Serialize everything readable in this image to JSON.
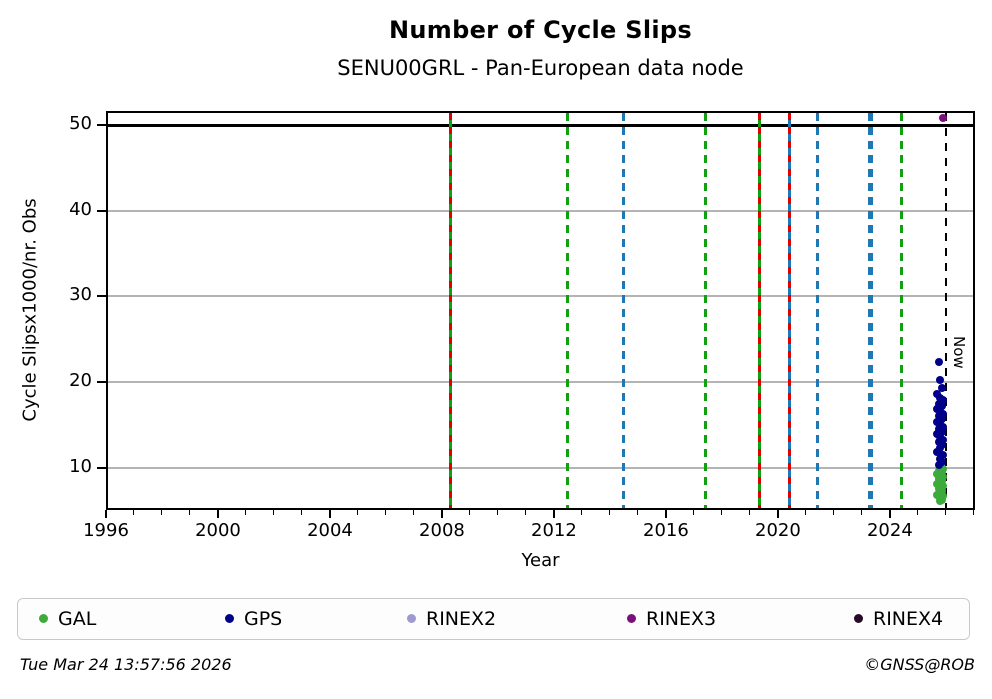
{
  "title": "Number of Cycle Slips",
  "subtitle": "SENU00GRL - Pan-European data node",
  "footer": {
    "timestamp": "Tue Mar 24 13:57:56 2026",
    "credit": "©GNSS@ROB"
  },
  "chart_data": {
    "type": "scatter",
    "title": "Number of Cycle Slips",
    "subtitle": "SENU00GRL - Pan-European data node",
    "xlabel": "Year",
    "ylabel": "Cycle Slipsx1000/nr. Obs",
    "xlim": [
      1996,
      2027.04
    ],
    "ylim": [
      5.1,
      51.6
    ],
    "x_major_ticks": [
      1996,
      2000,
      2004,
      2008,
      2012,
      2016,
      2020,
      2024
    ],
    "x_minor_tick_step": 1,
    "y_ticks": [
      10,
      20,
      30,
      40,
      50
    ],
    "grid": "horizontal-only",
    "gridline_color": "#b4b4b4",
    "threshold_line": {
      "y": 50,
      "color": "#000000",
      "style": "solid"
    },
    "now_line": {
      "x": 2026.0,
      "label": "Now",
      "color": "#000000",
      "style": "dashed"
    },
    "event_lines": [
      {
        "x": 2008.3,
        "color": "#12a012",
        "style": "solid",
        "overlay": "#e00000",
        "width": 3
      },
      {
        "x": 2012.5,
        "color": "#12a012",
        "style": "dashed",
        "overlay": null,
        "width": 3
      },
      {
        "x": 2014.5,
        "color": "#1f77b4",
        "style": "dashed",
        "overlay": null,
        "width": 3
      },
      {
        "x": 2017.4,
        "color": "#12a012",
        "style": "dashed",
        "overlay": null,
        "width": 3
      },
      {
        "x": 2019.35,
        "color": "#12a012",
        "style": "solid",
        "overlay": "#e00000",
        "width": 3
      },
      {
        "x": 2020.4,
        "color": "#1f77b4",
        "style": "solid",
        "overlay": "#e00000",
        "width": 3
      },
      {
        "x": 2021.4,
        "color": "#1f77b4",
        "style": "dashed",
        "overlay": null,
        "width": 3
      },
      {
        "x": 2023.3,
        "color": "#1f77b4",
        "style": "dashed",
        "overlay": null,
        "width": 5
      },
      {
        "x": 2024.4,
        "color": "#12a012",
        "style": "dashed",
        "overlay": null,
        "width": 3
      }
    ],
    "legend": {
      "position": "bottom",
      "entries": [
        "GAL",
        "GPS",
        "RINEX2",
        "RINEX3",
        "RINEX4"
      ]
    },
    "series": [
      {
        "name": "GAL",
        "color": "#3cab3c",
        "points": [
          [
            2025.8,
            10.1
          ],
          [
            2025.9,
            9.9
          ],
          [
            2025.75,
            9.7
          ],
          [
            2025.85,
            9.5
          ],
          [
            2025.7,
            9.3
          ],
          [
            2025.8,
            9.1
          ],
          [
            2025.9,
            8.9
          ],
          [
            2025.75,
            8.7
          ],
          [
            2025.85,
            8.5
          ],
          [
            2025.8,
            8.3
          ],
          [
            2025.7,
            8.1
          ],
          [
            2025.9,
            7.9
          ],
          [
            2025.8,
            7.7
          ],
          [
            2025.75,
            7.5
          ],
          [
            2025.85,
            7.3
          ],
          [
            2025.8,
            7.1
          ],
          [
            2025.7,
            6.9
          ],
          [
            2025.9,
            6.7
          ],
          [
            2025.8,
            6.5
          ],
          [
            2025.85,
            6.3
          ],
          [
            2025.8,
            6.2
          ]
        ]
      },
      {
        "name": "GPS",
        "color": "#00008b",
        "points": [
          [
            2025.75,
            22.4
          ],
          [
            2025.8,
            20.2
          ],
          [
            2025.85,
            19.3
          ],
          [
            2025.7,
            18.6
          ],
          [
            2025.8,
            18.2
          ],
          [
            2025.9,
            17.9
          ],
          [
            2025.75,
            17.5
          ],
          [
            2025.85,
            17.2
          ],
          [
            2025.7,
            16.9
          ],
          [
            2025.8,
            16.6
          ],
          [
            2025.9,
            16.3
          ],
          [
            2025.75,
            16.0
          ],
          [
            2025.85,
            15.7
          ],
          [
            2025.7,
            15.4
          ],
          [
            2025.8,
            15.1
          ],
          [
            2025.9,
            14.8
          ],
          [
            2025.75,
            14.5
          ],
          [
            2025.85,
            14.2
          ],
          [
            2025.7,
            13.9
          ],
          [
            2025.8,
            13.6
          ],
          [
            2025.9,
            13.3
          ],
          [
            2025.75,
            13.0
          ],
          [
            2025.85,
            12.7
          ],
          [
            2025.8,
            12.3
          ],
          [
            2025.7,
            11.9
          ],
          [
            2025.9,
            11.5
          ],
          [
            2025.8,
            11.1
          ],
          [
            2025.85,
            10.7
          ],
          [
            2025.75,
            10.4
          ]
        ]
      },
      {
        "name": "RINEX2",
        "color": "#9e9ad0",
        "points": []
      },
      {
        "name": "RINEX3",
        "color": "#7b107b",
        "points": [
          [
            2025.9,
            50.8
          ]
        ]
      },
      {
        "name": "RINEX4",
        "color": "#250a28",
        "points": []
      }
    ]
  }
}
